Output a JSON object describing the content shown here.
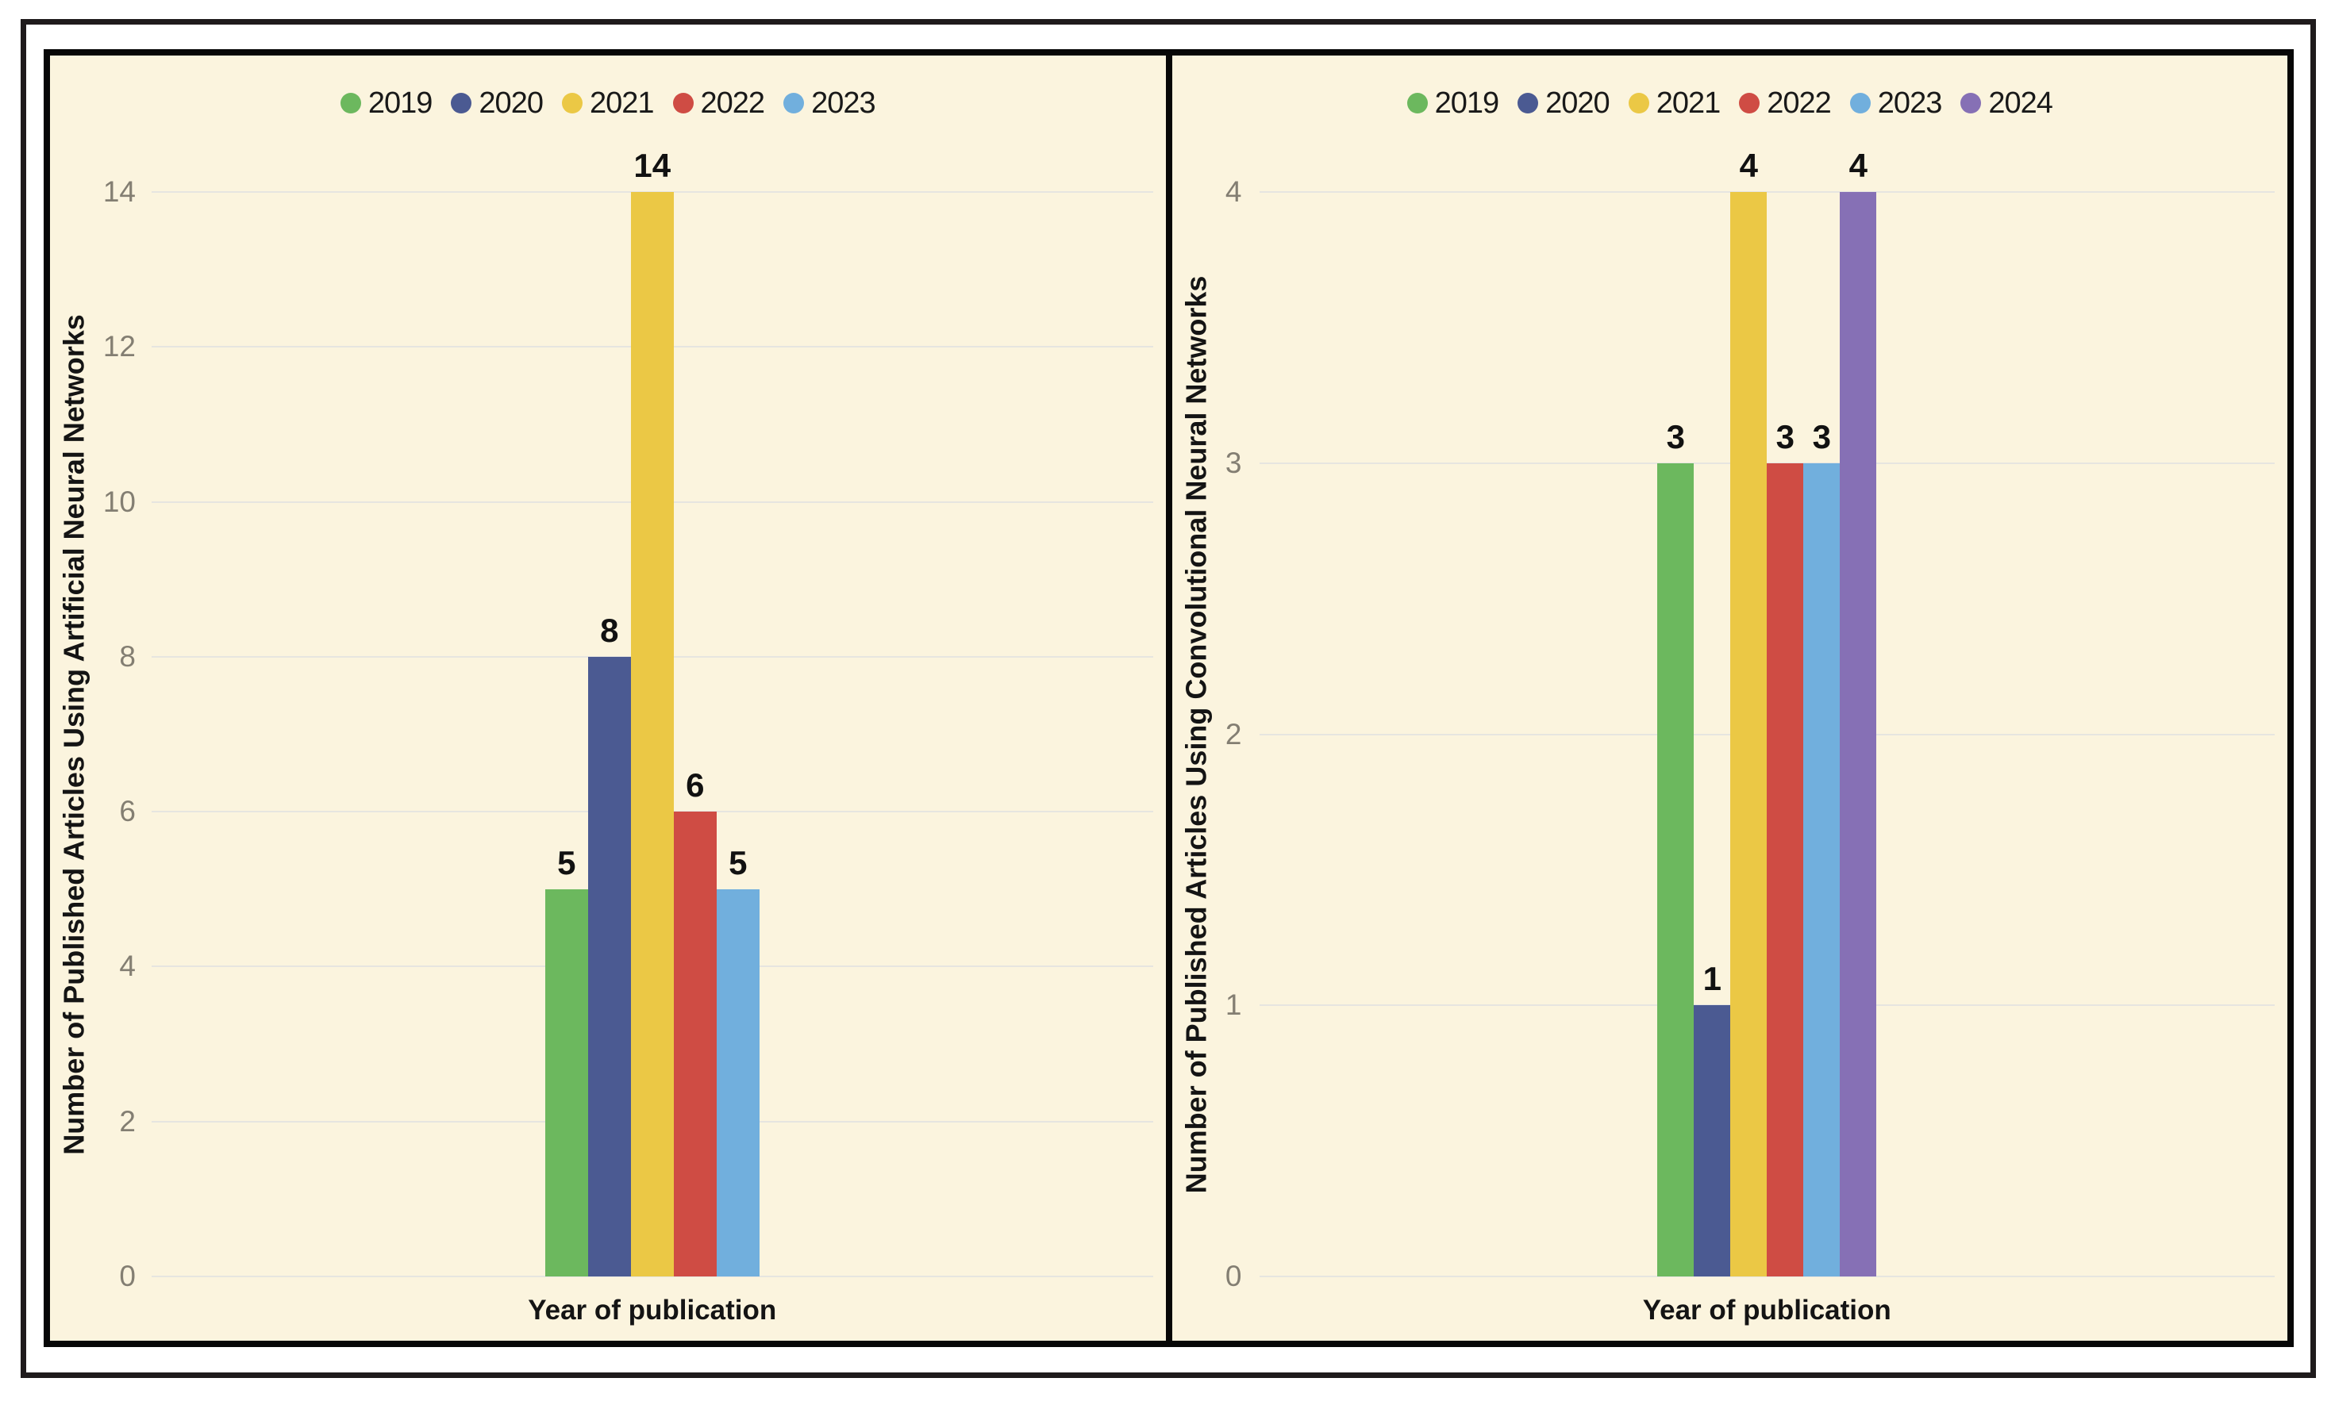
{
  "figure": {
    "page_background": "#FFFFFF",
    "panel_background": "#FBF4DE",
    "frame_color": "#1F1B1C",
    "gridline_color": "#E6E5E0",
    "tick_label_color": "#837E72",
    "text_color": "#141414"
  },
  "chart_data": [
    {
      "type": "bar",
      "title": "",
      "categories": [
        "2019",
        "2020",
        "2021",
        "2022",
        "2023"
      ],
      "values": [
        5,
        8,
        14,
        6,
        5
      ],
      "colors": [
        "#6CB85E",
        "#4B5A92",
        "#EBC845",
        "#CF4C44",
        "#71AFDD"
      ],
      "legend": [
        "2019",
        "2020",
        "2021",
        "2022",
        "2023"
      ],
      "legend_position": "top-center",
      "xlabel": "Year of publication",
      "ylabel": "Number of Published Articles Using Artificial Neural Networks",
      "ylim": [
        0,
        14
      ],
      "yticks": [
        0,
        2,
        4,
        6,
        8,
        10,
        12,
        14
      ],
      "grid": true,
      "show_value_labels": true
    },
    {
      "type": "bar",
      "title": "",
      "categories": [
        "2019",
        "2020",
        "2021",
        "2022",
        "2023",
        "2024"
      ],
      "values": [
        3,
        1,
        4,
        3,
        3,
        4
      ],
      "colors": [
        "#6CB85E",
        "#4B5A92",
        "#EBC845",
        "#CF4C44",
        "#71AFDD",
        "#8670B5"
      ],
      "legend": [
        "2019",
        "2020",
        "2021",
        "2022",
        "2023",
        "2024"
      ],
      "legend_position": "top-center",
      "xlabel": "Year of publication",
      "ylabel": "Number of Published Articles Using Convolutional Neural Networks",
      "ylim": [
        0,
        4
      ],
      "yticks": [
        0,
        1,
        2,
        3,
        4
      ],
      "grid": true,
      "show_value_labels": true
    }
  ]
}
